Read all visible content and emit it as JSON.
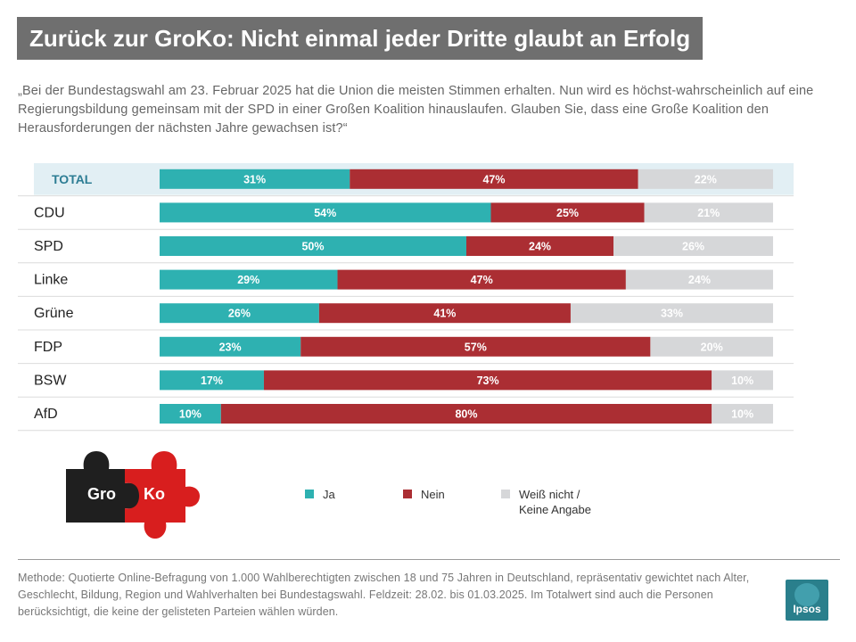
{
  "title": "Zurück zur GroKo: Nicht einmal jeder Dritte glaubt an Erfolg",
  "question": "„Bei der Bundestagswahl am 23. Februar 2025 hat die Union die meisten Stimmen erhalten. Nun wird es höchst-wahrscheinlich auf eine Regierungsbildung gemeinsam mit der SPD in einer Großen Koalition hinauslaufen. Glauben Sie, dass eine Große Koalition den Herausforderungen der nächsten Jahre gewachsen ist?“",
  "colors": {
    "ja": "#2eb1b1",
    "nein": "#ab2e33",
    "weiss": "#d6d7d9",
    "total_bg": "#e2eff4",
    "total_text": "#2d7d94"
  },
  "chart_data": {
    "type": "bar",
    "orientation": "horizontal",
    "stacked": true,
    "unit": "%",
    "xlim": [
      0,
      100
    ],
    "categories": [
      "TOTAL",
      "CDU",
      "SPD",
      "Linke",
      "Grüne",
      "FDP",
      "BSW",
      "AfD"
    ],
    "series": [
      {
        "name": "Ja",
        "values": [
          31,
          54,
          50,
          29,
          26,
          23,
          17,
          10
        ]
      },
      {
        "name": "Nein",
        "values": [
          47,
          25,
          24,
          47,
          41,
          57,
          73,
          80
        ]
      },
      {
        "name": "Weiß nicht / Keine Angabe",
        "values": [
          22,
          21,
          26,
          24,
          33,
          20,
          10,
          10
        ]
      }
    ],
    "highlight_category": "TOTAL",
    "legend_position": "bottom"
  },
  "legend": {
    "ja": "Ja",
    "nein": "Nein",
    "weiss_line1": "Weiß nicht /",
    "weiss_line2": "Keine Angabe"
  },
  "puzzle": {
    "left": "Gro",
    "right": "Ko"
  },
  "method": "Methode: Quotierte Online-Befragung von 1.000 Wahlberechtigten zwischen 18 und 75 Jahren in Deutschland, repräsentativ gewichtet nach Alter, Geschlecht, Bildung, Region und Wahlverhalten bei Bundestagswahl. Feldzeit: 28.02. bis 01.03.2025. Im Totalwert sind auch die Personen berücksichtigt, die keine der gelisteten Parteien wählen würden.",
  "logo": "Ipsos"
}
